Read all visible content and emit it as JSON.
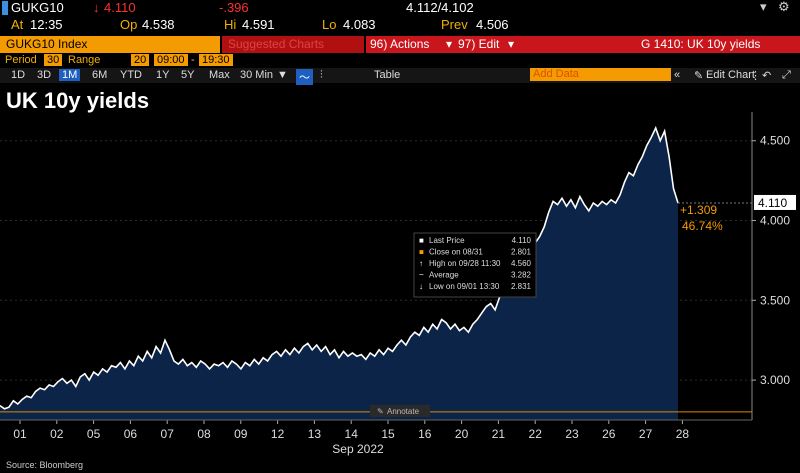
{
  "quote": {
    "symbol": "GUKG10",
    "last": "4.110",
    "change": "-.396",
    "bid_ask": "4.112/4.102",
    "at_label": "At",
    "at": "12:35",
    "op_label": "Op",
    "op": "4.538",
    "hi_label": "Hi",
    "hi": "4.591",
    "lo_label": "Lo",
    "lo": "4.083",
    "prev_label": "Prev",
    "prev": "4.506"
  },
  "toolbar": {
    "ticker": "GUKG10 Index",
    "suggested": "Suggested Charts",
    "actions": "96) Actions",
    "edit": "97) Edit",
    "chart_name": "G 1410: UK 10y yields",
    "period_label": "Period",
    "period_value": "30",
    "range_label": "Range",
    "range_value": "20",
    "time_from": "09:00",
    "time_to": "19:30",
    "timeframes": [
      "1D",
      "3D",
      "1M",
      "6M",
      "YTD",
      "1Y",
      "5Y",
      "Max",
      "30 Min"
    ],
    "table_label": "Table",
    "add_data": "Add Data",
    "edit_chart": "Edit Chart"
  },
  "legend_box": {
    "rows": [
      {
        "label": "Last Price",
        "value": "4.110"
      },
      {
        "label": "Close on 08/31",
        "value": "2.801"
      },
      {
        "label": "High on 09/28 11:30",
        "value": "4.560"
      },
      {
        "label": "Average",
        "value": "3.282"
      },
      {
        "label": "Low on 09/01 13:30",
        "value": "2.831"
      }
    ]
  },
  "annotate_label": "Annotate",
  "source": "Source: Bloomberg",
  "chart_data": {
    "type": "area",
    "title": "UK 10y yields",
    "xlabel": "Sep 2022",
    "x_ticks": [
      "01",
      "02",
      "05",
      "06",
      "07",
      "08",
      "09",
      "12",
      "13",
      "14",
      "15",
      "16",
      "20",
      "21",
      "22",
      "23",
      "26",
      "27",
      "28"
    ],
    "y_ticks": [
      "3.000",
      "3.500",
      "4.000",
      "4.500"
    ],
    "ylim": [
      2.75,
      4.68
    ],
    "reference_line": 2.801,
    "last_price": "4.110",
    "change_abs": "+1.309",
    "change_pct": "46.74%",
    "colors": {
      "fill": "#0c2447",
      "line": "#ffffff",
      "last_tag": "#ffffff",
      "change": "#f39b00",
      "ref_line": "#d88a00"
    },
    "values": [
      2.84,
      2.82,
      2.83,
      2.87,
      2.85,
      2.88,
      2.9,
      2.89,
      2.93,
      2.95,
      2.94,
      2.97,
      2.96,
      2.99,
      3.01,
      2.98,
      3.0,
      2.96,
      3.02,
      3.04,
      3.0,
      3.05,
      3.03,
      3.07,
      3.05,
      3.09,
      3.08,
      3.11,
      3.07,
      3.12,
      3.09,
      3.15,
      3.12,
      3.18,
      3.14,
      3.21,
      3.17,
      3.25,
      3.19,
      3.12,
      3.1,
      3.13,
      3.09,
      3.11,
      3.08,
      3.12,
      3.1,
      3.07,
      3.1,
      3.09,
      3.11,
      3.08,
      3.12,
      3.1,
      3.07,
      3.11,
      3.09,
      3.13,
      3.1,
      3.14,
      3.12,
      3.16,
      3.18,
      3.15,
      3.19,
      3.16,
      3.2,
      3.17,
      3.21,
      3.23,
      3.19,
      3.22,
      3.18,
      3.21,
      3.16,
      3.19,
      3.14,
      3.18,
      3.15,
      3.17,
      3.15,
      3.16,
      3.13,
      3.17,
      3.15,
      3.19,
      3.16,
      3.2,
      3.18,
      3.22,
      3.25,
      3.22,
      3.27,
      3.3,
      3.28,
      3.33,
      3.3,
      3.35,
      3.32,
      3.38,
      3.36,
      3.32,
      3.35,
      3.31,
      3.33,
      3.3,
      3.35,
      3.38,
      3.42,
      3.46,
      3.48,
      3.44,
      3.52,
      3.58,
      3.66,
      3.74,
      3.78,
      3.75,
      3.82,
      3.8,
      3.86,
      3.9,
      3.96,
      4.05,
      4.12,
      4.1,
      4.14,
      4.09,
      4.13,
      4.08,
      4.15,
      4.1,
      4.06,
      4.11,
      4.09,
      4.12,
      4.1,
      4.13,
      4.11,
      4.16,
      4.24,
      4.3,
      4.28,
      4.35,
      4.4,
      4.47,
      4.52,
      4.58,
      4.5,
      4.56,
      4.4,
      4.2,
      4.11
    ]
  }
}
